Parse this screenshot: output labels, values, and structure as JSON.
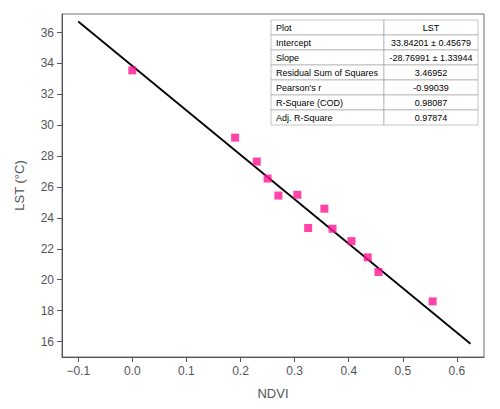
{
  "chart_data": {
    "type": "scatter",
    "xlabel": "NDVI",
    "ylabel": "LST (°C)",
    "series": [
      {
        "type": "line",
        "x": [
          -0.1,
          0.625
        ],
        "values": [
          36.719001,
          15.86081625
        ],
        "color": "black",
        "line_style": "solid"
      },
      {
        "type": "scatter",
        "x": [
          0.0,
          0.19,
          0.23,
          0.25,
          0.27,
          0.305,
          0.325,
          0.355,
          0.37,
          0.405,
          0.435,
          0.455,
          0.555
        ],
        "values": [
          33.55,
          29.2,
          27.65,
          26.55,
          25.45,
          25.5,
          23.35,
          24.6,
          23.3,
          22.5,
          21.45,
          20.5,
          18.6
        ],
        "color": "#FF1493",
        "marker": "square"
      }
    ],
    "xlim": [
      -0.13,
      0.65
    ],
    "ylim": [
      15.0,
      37.2
    ],
    "xticks": [
      {
        "value": -0.1,
        "label": "−0.1"
      },
      {
        "value": 0.0,
        "label": "0.0"
      },
      0.1,
      0.2,
      0.3,
      0.4,
      0.5,
      0.6
    ],
    "yticks": [
      16,
      18,
      20,
      22,
      24,
      26,
      28,
      30,
      32,
      34,
      36
    ],
    "grid": false,
    "table": {
      "headers": [
        "Plot",
        "LST"
      ],
      "rows": [
        [
          "Intercept",
          "33.84201 ± 0.45679"
        ],
        [
          "Slope",
          "-28.76991 ± 1.33944"
        ],
        [
          "Residual Sum of Squares",
          "3.46952"
        ],
        [
          "Pearson's r",
          "-0.99039"
        ],
        [
          "R-Square (COD)",
          "0.98087"
        ],
        [
          "Adj. R-Square",
          "0.97874"
        ]
      ]
    }
  }
}
